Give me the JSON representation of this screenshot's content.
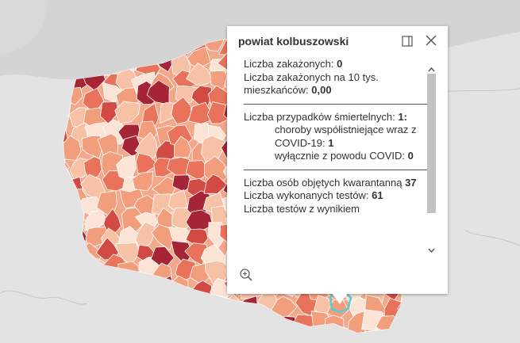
{
  "popup": {
    "title": "powiat kolbuszowski",
    "infections_label": "Liczba zakażonych: ",
    "infections_value": "0",
    "per10k_label": "Liczba zakażonych na 10 tys. mieszkańców: ",
    "per10k_value": "0,00",
    "deaths_label": "Liczba przypadków śmiertelnych: ",
    "deaths_value": "1:",
    "comorbid_label": "choroby współistniejące wraz z COVID-19: ",
    "comorbid_value": "1",
    "covid_only_label": "wyłącznie z powodu COVID: ",
    "covid_only_value": "0",
    "quarantine_label": "Liczba osób objętych kwarantanną ",
    "quarantine_value": "37",
    "tests_label": "Liczba wykonanych testów: ",
    "tests_value": "61",
    "tests_result_label": "Liczba testów z wynikiem"
  },
  "icons": {
    "dock": "dock-icon",
    "close": "close-icon",
    "zoom": "zoom-to-icon"
  },
  "colors": {
    "map_background": "#e3e3e3",
    "selected_outline": "#4fd1d9",
    "choropleth_scale": [
      "#fbe3d6",
      "#f7c1a5",
      "#f29d7c",
      "#e8735a",
      "#d14a44",
      "#a52536"
    ]
  }
}
